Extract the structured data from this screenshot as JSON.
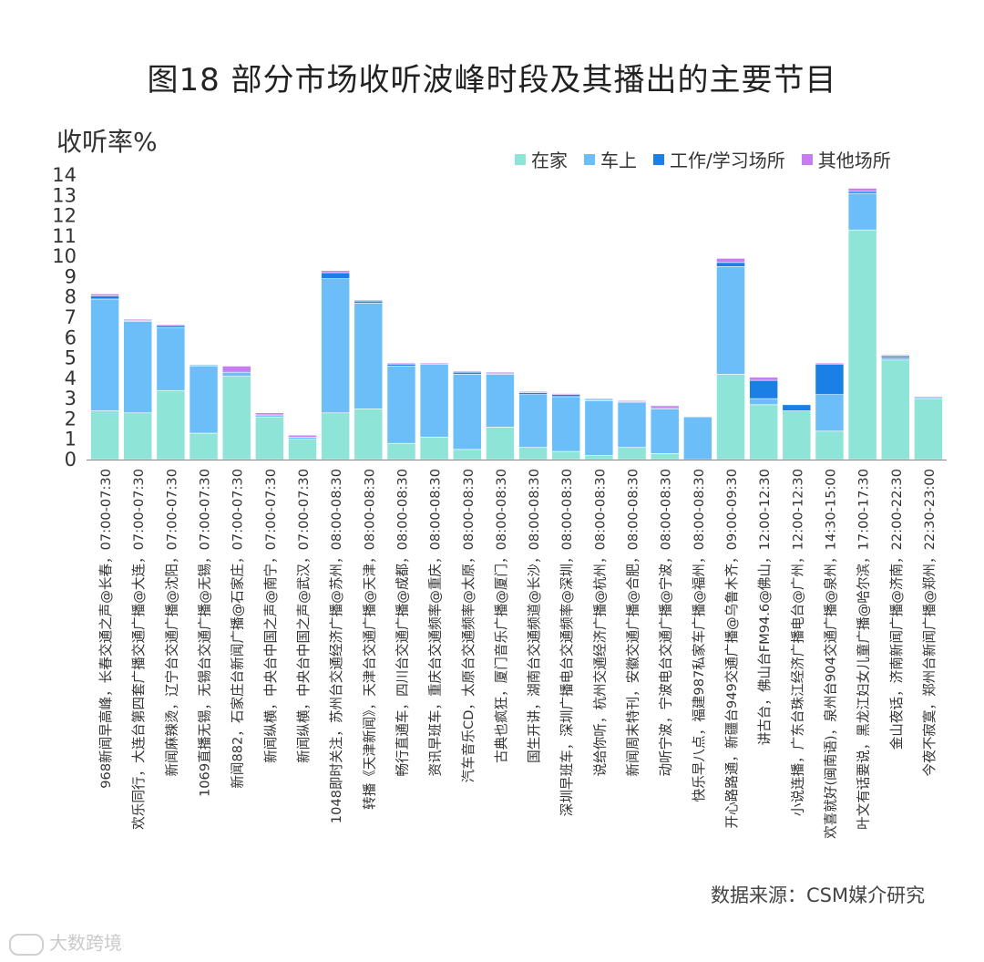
{
  "chart_data": {
    "type": "bar",
    "stacked": true,
    "title": "图18 部分市场收听波峰时段及其播出的主要节目",
    "ylabel": "收听率%",
    "ylim": [
      0,
      14
    ],
    "yticks": [
      0,
      1,
      2,
      3,
      4,
      5,
      6,
      7,
      8,
      9,
      10,
      11,
      12,
      13,
      14
    ],
    "grid": false,
    "legend_position": "top-right",
    "categories": [
      "968新闻早高峰，长春交通之声@长春，07:00-07:30",
      "欢乐同行，大连台第四套广播交通广播@大连，07:00-07:30",
      "新闻麻辣烫，辽宁台交通广播@沈阳，07:00-07:30",
      "1069直播无锡，无锡台交通广播@无锡，07:00-07:30",
      "新闻882，石家庄台新闻广播@石家庄，07:00-07:30",
      "新闻纵横，中央台中国之声@南宁，07:00-07:30",
      "新闻纵横，中央台中国之声@武汉，07:00-07:30",
      "1048即时关注，苏州台交通经济广播@苏州，08:00-08:30",
      "转播《天津新闻》，天津台交通广播@天津，08:00-08:30",
      "畅行直通车，四川台交通广播@成都，08:00-08:30",
      "资讯早班车，重庆台交通频率@重庆，08:00-08:30",
      "汽车音乐CD，太原台交通频率@太原，08:00-08:30",
      "古典也疯狂，厦门音乐广播@厦门，08:00-08:30",
      "国生开讲，湖南台交通频道@长沙，08:00-08:30",
      "深圳早班车，深圳广播电台交通频率@深圳，08:00-08:30",
      "说给你听，杭州交通经济广播@杭州，08:00-08:30",
      "新闻周末特刊，安徽交通广播@合肥，08:00-08:30",
      "动听宁波，宁波电台交通广播@宁波，08:00-08:30",
      "快乐早八点，福建987私家车广播@福州，08:00-08:30",
      "开心路路通，新疆台949交通广播@乌鲁木齐，09:00-09:30",
      "讲古台，佛山台FM94.6@佛山，12:00-12:30",
      "小说连播，广东台珠江经济广播电台@广州，12:00-12:30",
      "欢喜就好(闽南语)，泉州台904交通广播@泉州，14:30-15:00",
      "叶文有话要说，黑龙江妇女儿童广播@哈尔滨，17:00-17:30",
      "金山夜话，济南新闻广播@济南，22:00-22:30",
      "今夜不寂寞，郑州台新闻广播@郑州，22:30-23:00"
    ],
    "series": [
      {
        "name": "在家",
        "color": "#8ee4d7",
        "values": [
          2.4,
          2.3,
          3.4,
          1.3,
          4.1,
          2.1,
          1.0,
          2.3,
          2.5,
          0.8,
          1.1,
          0.5,
          1.6,
          0.6,
          0.4,
          0.2,
          0.6,
          0.3,
          0.0,
          4.2,
          2.7,
          2.4,
          1.4,
          11.3,
          4.9,
          3.0
        ]
      },
      {
        "name": "车上",
        "color": "#6cbef8",
        "values": [
          5.5,
          4.5,
          3.1,
          3.3,
          0.2,
          0.1,
          0.1,
          6.6,
          5.2,
          3.8,
          3.6,
          3.7,
          2.6,
          2.6,
          2.7,
          2.7,
          2.2,
          2.2,
          2.1,
          5.3,
          0.3,
          0.0,
          1.8,
          1.8,
          0.1,
          0.0
        ]
      },
      {
        "name": "工作/学习场所",
        "color": "#1b80e6",
        "values": [
          0.15,
          0.05,
          0.1,
          0.05,
          0.0,
          0.0,
          0.0,
          0.3,
          0.1,
          0.1,
          0.0,
          0.1,
          0.05,
          0.1,
          0.1,
          0.05,
          0.05,
          0.05,
          0.0,
          0.2,
          0.9,
          0.3,
          1.5,
          0.1,
          0.1,
          0.05
        ]
      },
      {
        "name": "其他场所",
        "color": "#c77cf2",
        "values": [
          0.1,
          0.05,
          0.05,
          0.0,
          0.3,
          0.1,
          0.1,
          0.1,
          0.05,
          0.05,
          0.05,
          0.05,
          0.05,
          0.05,
          0.05,
          0.05,
          0.05,
          0.1,
          0.0,
          0.2,
          0.15,
          0.0,
          0.05,
          0.15,
          0.05,
          0.05
        ]
      }
    ]
  },
  "source": "数据来源：CSM媒介研究",
  "watermark": "大数跨境"
}
